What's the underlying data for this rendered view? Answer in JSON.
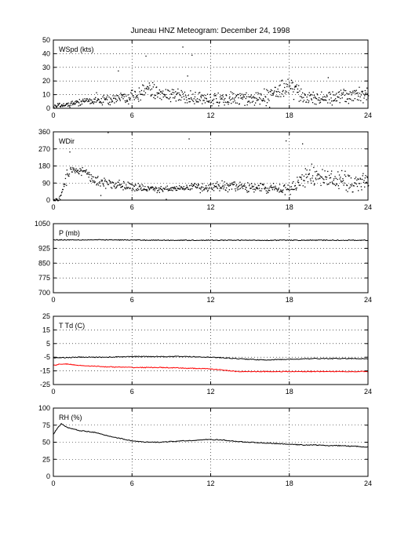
{
  "title": "Juneau HNZ Meteogram:  December 24, 1998",
  "chart_data": [
    {
      "type": "scatter",
      "label": "WSpd (kts)",
      "xlim": [
        0,
        24
      ],
      "xticks": [
        "0",
        "6",
        "12",
        "18",
        "24"
      ],
      "ylim": [
        0,
        50
      ],
      "yticks": [
        "0",
        "10",
        "20",
        "30",
        "40",
        "50"
      ],
      "grid": true,
      "series": [
        {
          "color": "#000000",
          "x": [
            0,
            1,
            2,
            3,
            4,
            5,
            6,
            7,
            8,
            9,
            10,
            11,
            12,
            13,
            14,
            15,
            16,
            17,
            18,
            19,
            20,
            21,
            22,
            23,
            24
          ],
          "y": [
            2,
            3,
            5,
            6,
            6,
            8,
            9,
            12,
            13,
            10,
            9,
            8,
            7,
            6,
            7,
            6,
            9,
            13,
            17,
            9,
            8,
            8,
            9,
            10,
            10
          ],
          "spread": [
            1,
            1.5,
            2,
            2,
            3,
            3,
            4,
            5,
            5,
            4,
            4,
            4,
            4,
            3,
            4,
            4,
            4,
            5,
            5,
            4,
            4,
            4,
            4,
            4,
            4
          ]
        }
      ]
    },
    {
      "type": "scatter",
      "label": "WDir",
      "xlim": [
        0,
        24
      ],
      "xticks": [
        "0",
        "6",
        "12",
        "18",
        "24"
      ],
      "ylim": [
        0,
        360
      ],
      "yticks": [
        "0",
        "90",
        "180",
        "270",
        "360"
      ],
      "grid": true,
      "series": [
        {
          "color": "#000000",
          "x": [
            0,
            0.5,
            1,
            1.5,
            2,
            2.5,
            3,
            4,
            5,
            6,
            7,
            8,
            9,
            10,
            11,
            12,
            13,
            14,
            15,
            16,
            17,
            18,
            18.7,
            19,
            20,
            21,
            22,
            23,
            24
          ],
          "y": [
            0,
            15,
            140,
            160,
            160,
            140,
            110,
            90,
            80,
            70,
            65,
            60,
            60,
            65,
            70,
            75,
            75,
            70,
            70,
            65,
            60,
            60,
            95,
            120,
            115,
            110,
            100,
            100,
            100
          ],
          "spread": [
            5,
            10,
            20,
            20,
            20,
            20,
            20,
            20,
            20,
            20,
            15,
            15,
            15,
            15,
            20,
            20,
            25,
            20,
            20,
            20,
            20,
            20,
            30,
            40,
            40,
            40,
            40,
            40,
            40
          ]
        }
      ]
    },
    {
      "type": "line",
      "label": "P (mb)",
      "xlim": [
        0,
        24
      ],
      "xticks": [
        "0",
        "6",
        "12",
        "18",
        "24"
      ],
      "ylim": [
        700,
        1050
      ],
      "yticks": [
        "700",
        "775",
        "850",
        "925",
        "1050"
      ],
      "grid": true,
      "series": [
        {
          "color": "#000000",
          "x": [
            0,
            3,
            6,
            9,
            12,
            15,
            18,
            21,
            24
          ],
          "y": [
            968,
            968,
            967,
            966,
            966,
            966,
            966,
            966,
            966
          ]
        }
      ]
    },
    {
      "type": "line",
      "label": "T Td (C)",
      "xlim": [
        0,
        24
      ],
      "xticks": [
        "0",
        "6",
        "12",
        "18",
        "24"
      ],
      "ylim": [
        -25,
        25
      ],
      "yticks": [
        "-25",
        "-15",
        "-5",
        "5",
        "15",
        "25"
      ],
      "grid": true,
      "series": [
        {
          "color": "#000000",
          "x": [
            0,
            2,
            4,
            6,
            8,
            10,
            12,
            14,
            16,
            18,
            20,
            22,
            24
          ],
          "y": [
            -5.5,
            -5,
            -5,
            -4.5,
            -4.5,
            -4.5,
            -5,
            -6,
            -7,
            -6.5,
            -6,
            -6,
            -6
          ]
        },
        {
          "color": "#ff0000",
          "x": [
            0,
            0.5,
            1,
            2,
            4,
            6,
            8,
            10,
            12,
            13,
            14,
            16,
            18,
            20,
            22,
            24
          ],
          "y": [
            -11,
            -10,
            -10,
            -11,
            -12,
            -12.5,
            -12.5,
            -13,
            -13.5,
            -14.5,
            -15.5,
            -15.5,
            -15.5,
            -15.5,
            -15.5,
            -15.5
          ]
        }
      ]
    },
    {
      "type": "line",
      "label": "RH (%)",
      "xlim": [
        0,
        24
      ],
      "xticks": [
        "0",
        "6",
        "12",
        "18",
        "24"
      ],
      "ylim": [
        0,
        100
      ],
      "yticks": [
        "0",
        "25",
        "50",
        "75",
        "100"
      ],
      "grid": true,
      "series": [
        {
          "color": "#000000",
          "x": [
            0,
            0.3,
            0.6,
            1,
            2,
            3,
            4,
            5,
            6,
            7,
            8,
            9,
            10,
            11,
            12,
            13,
            14,
            15,
            16,
            17,
            18,
            19,
            20,
            21,
            22,
            23,
            24
          ],
          "y": [
            62,
            70,
            77,
            72,
            67,
            65,
            60,
            56,
            52,
            50,
            50,
            51,
            52,
            53,
            54,
            53,
            51,
            50,
            49,
            48,
            47,
            46,
            46,
            45,
            45,
            44,
            43
          ]
        }
      ]
    }
  ]
}
